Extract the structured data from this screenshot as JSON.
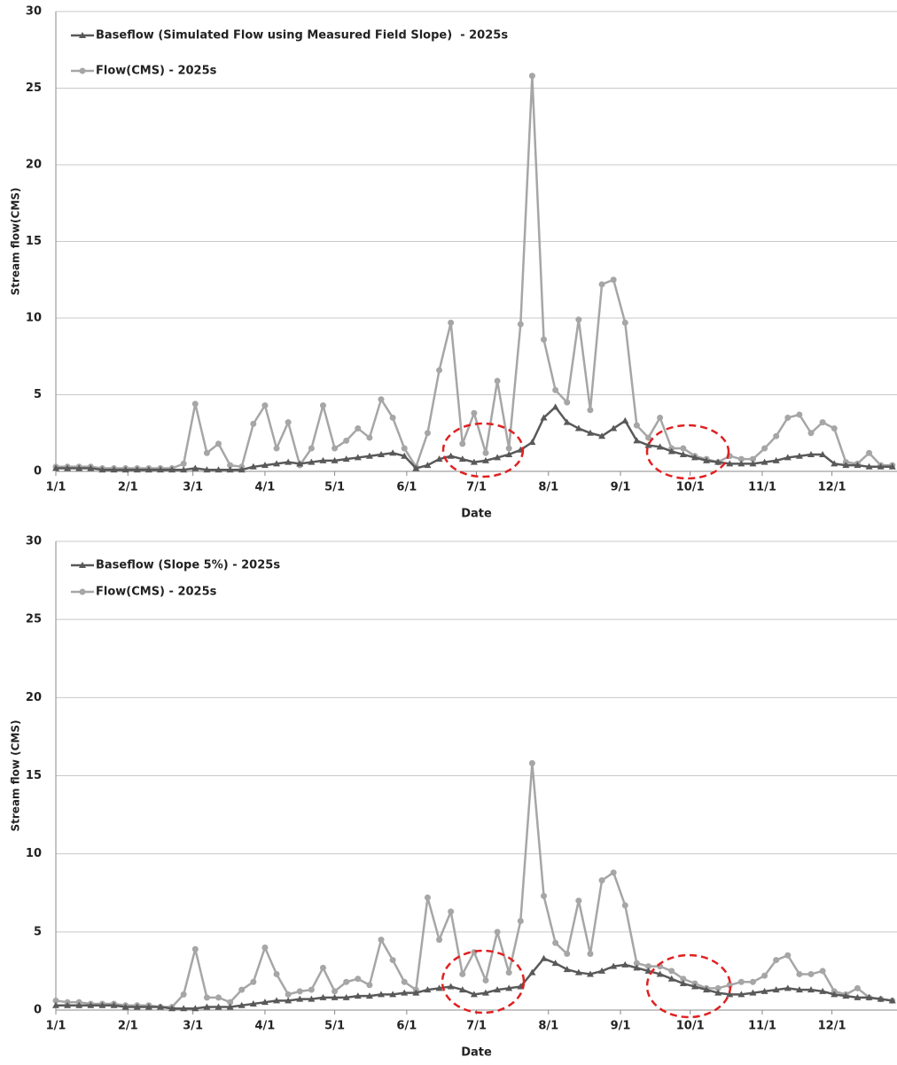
{
  "chart_data": [
    {
      "type": "line",
      "xlabel": "Date",
      "ylabel": "Stream flow(CMS)",
      "x": [
        1,
        6,
        11,
        16,
        21,
        26,
        31,
        36,
        41,
        46,
        51,
        56,
        61,
        66,
        71,
        76,
        81,
        86,
        91,
        96,
        101,
        106,
        111,
        116,
        121,
        126,
        131,
        136,
        141,
        146,
        151,
        156,
        161,
        166,
        171,
        176,
        181,
        186,
        191,
        196,
        201,
        206,
        211,
        216,
        221,
        226,
        231,
        236,
        241,
        246,
        251,
        256,
        261,
        266,
        271,
        276,
        281,
        286,
        291,
        296,
        301,
        306,
        311,
        316,
        321,
        326,
        331,
        336,
        341,
        346,
        351,
        356,
        361
      ],
      "xlim": [
        1,
        363
      ],
      "xticks": [
        {
          "value": 1,
          "label": "1/1"
        },
        {
          "value": 32,
          "label": "2/1"
        },
        {
          "value": 60,
          "label": "3/1"
        },
        {
          "value": 91,
          "label": "4/1"
        },
        {
          "value": 121,
          "label": "5/1"
        },
        {
          "value": 152,
          "label": "6/1"
        },
        {
          "value": 182,
          "label": "7/1"
        },
        {
          "value": 213,
          "label": "8/1"
        },
        {
          "value": 244,
          "label": "9/1"
        },
        {
          "value": 274,
          "label": "10/1"
        },
        {
          "value": 305,
          "label": "11/1"
        },
        {
          "value": 335,
          "label": "12/1"
        }
      ],
      "ylim": [
        0,
        30
      ],
      "yticks": [
        0,
        5,
        10,
        15,
        20,
        25,
        30
      ],
      "grid": true,
      "series": [
        {
          "name": "Baseflow (Simulated Flow using Measured Field Slope)  - 2025s",
          "color": "#595959",
          "marker": "triangle",
          "values": [
            0.2,
            0.2,
            0.2,
            0.2,
            0.1,
            0.1,
            0.1,
            0.1,
            0.1,
            0.1,
            0.1,
            0.1,
            0.2,
            0.1,
            0.1,
            0.1,
            0.1,
            0.3,
            0.4,
            0.5,
            0.6,
            0.5,
            0.6,
            0.7,
            0.7,
            0.8,
            0.9,
            1.0,
            1.1,
            1.2,
            1.0,
            0.2,
            0.4,
            0.8,
            1.0,
            0.8,
            0.6,
            0.7,
            0.9,
            1.1,
            1.4,
            1.9,
            3.5,
            4.2,
            3.2,
            2.8,
            2.5,
            2.3,
            2.8,
            3.3,
            2.0,
            1.7,
            1.6,
            1.3,
            1.1,
            0.9,
            0.7,
            0.6,
            0.5,
            0.5,
            0.5,
            0.6,
            0.7,
            0.9,
            1.0,
            1.1,
            1.1,
            0.5,
            0.4,
            0.4,
            0.3,
            0.3,
            0.3
          ]
        },
        {
          "name": "Flow(CMS) - 2025s",
          "color": "#a6a6a6",
          "marker": "circle",
          "values": [
            0.3,
            0.3,
            0.3,
            0.3,
            0.2,
            0.2,
            0.2,
            0.2,
            0.2,
            0.2,
            0.2,
            0.5,
            4.4,
            1.2,
            1.8,
            0.4,
            0.3,
            3.1,
            4.3,
            1.5,
            3.2,
            0.4,
            1.5,
            4.3,
            1.5,
            2.0,
            2.8,
            2.2,
            4.7,
            3.5,
            1.5,
            0.3,
            2.5,
            6.6,
            9.7,
            1.8,
            3.8,
            1.2,
            5.9,
            1.5,
            9.6,
            25.8,
            8.6,
            5.3,
            4.5,
            9.9,
            4.0,
            12.2,
            12.5,
            9.7,
            3.0,
            2.2,
            3.5,
            1.5,
            1.5,
            1.0,
            0.8,
            0.6,
            1.0,
            0.8,
            0.8,
            1.5,
            2.3,
            3.5,
            3.7,
            2.5,
            3.2,
            2.8,
            0.6,
            0.5,
            1.2,
            0.4,
            0.4
          ]
        }
      ]
    },
    {
      "type": "line",
      "xlabel": "Date",
      "ylabel": "Stream flow (CMS)",
      "x": [
        1,
        6,
        11,
        16,
        21,
        26,
        31,
        36,
        41,
        46,
        51,
        56,
        61,
        66,
        71,
        76,
        81,
        86,
        91,
        96,
        101,
        106,
        111,
        116,
        121,
        126,
        131,
        136,
        141,
        146,
        151,
        156,
        161,
        166,
        171,
        176,
        181,
        186,
        191,
        196,
        201,
        206,
        211,
        216,
        221,
        226,
        231,
        236,
        241,
        246,
        251,
        256,
        261,
        266,
        271,
        276,
        281,
        286,
        291,
        296,
        301,
        306,
        311,
        316,
        321,
        326,
        331,
        336,
        341,
        346,
        351,
        356,
        361
      ],
      "xlim": [
        1,
        363
      ],
      "xticks": [
        {
          "value": 1,
          "label": "1/1"
        },
        {
          "value": 32,
          "label": "2/1"
        },
        {
          "value": 60,
          "label": "3/1"
        },
        {
          "value": 91,
          "label": "4/1"
        },
        {
          "value": 121,
          "label": "5/1"
        },
        {
          "value": 152,
          "label": "6/1"
        },
        {
          "value": 182,
          "label": "7/1"
        },
        {
          "value": 213,
          "label": "8/1"
        },
        {
          "value": 244,
          "label": "9/1"
        },
        {
          "value": 274,
          "label": "10/1"
        },
        {
          "value": 305,
          "label": "11/1"
        },
        {
          "value": 335,
          "label": "12/1"
        }
      ],
      "ylim": [
        0,
        30
      ],
      "yticks": [
        0,
        5,
        10,
        15,
        20,
        25,
        30
      ],
      "grid": true,
      "series": [
        {
          "name": "Baseflow (Slope 5%) - 2025s",
          "color": "#595959",
          "marker": "triangle",
          "values": [
            0.3,
            0.3,
            0.3,
            0.3,
            0.3,
            0.3,
            0.2,
            0.2,
            0.2,
            0.2,
            0.1,
            0.1,
            0.1,
            0.2,
            0.2,
            0.2,
            0.3,
            0.4,
            0.5,
            0.6,
            0.6,
            0.7,
            0.7,
            0.8,
            0.8,
            0.8,
            0.9,
            0.9,
            1.0,
            1.0,
            1.1,
            1.1,
            1.3,
            1.4,
            1.5,
            1.3,
            1.0,
            1.1,
            1.3,
            1.4,
            1.5,
            2.4,
            3.3,
            3.0,
            2.6,
            2.4,
            2.3,
            2.5,
            2.8,
            2.9,
            2.7,
            2.5,
            2.3,
            2.0,
            1.7,
            1.5,
            1.3,
            1.1,
            1.0,
            1.0,
            1.1,
            1.2,
            1.3,
            1.4,
            1.3,
            1.3,
            1.2,
            1.0,
            0.9,
            0.8,
            0.8,
            0.7,
            0.6
          ]
        },
        {
          "name": "Flow(CMS) - 2025s",
          "color": "#a6a6a6",
          "marker": "circle",
          "values": [
            0.6,
            0.5,
            0.5,
            0.4,
            0.4,
            0.4,
            0.3,
            0.3,
            0.3,
            0.2,
            0.2,
            1.0,
            3.9,
            0.8,
            0.8,
            0.5,
            1.3,
            1.8,
            4.0,
            2.3,
            1.0,
            1.2,
            1.3,
            2.7,
            1.2,
            1.8,
            2.0,
            1.6,
            4.5,
            3.2,
            1.8,
            1.3,
            7.2,
            4.5,
            6.3,
            2.3,
            3.7,
            1.9,
            5.0,
            2.4,
            5.7,
            15.8,
            7.3,
            4.3,
            3.6,
            7.0,
            3.6,
            8.3,
            8.8,
            6.7,
            3.0,
            2.8,
            2.8,
            2.5,
            2.0,
            1.7,
            1.4,
            1.4,
            1.6,
            1.8,
            1.8,
            2.2,
            3.2,
            3.5,
            2.3,
            2.3,
            2.5,
            1.2,
            1.0,
            1.4,
            0.8,
            0.7,
            0.6
          ]
        }
      ]
    }
  ]
}
